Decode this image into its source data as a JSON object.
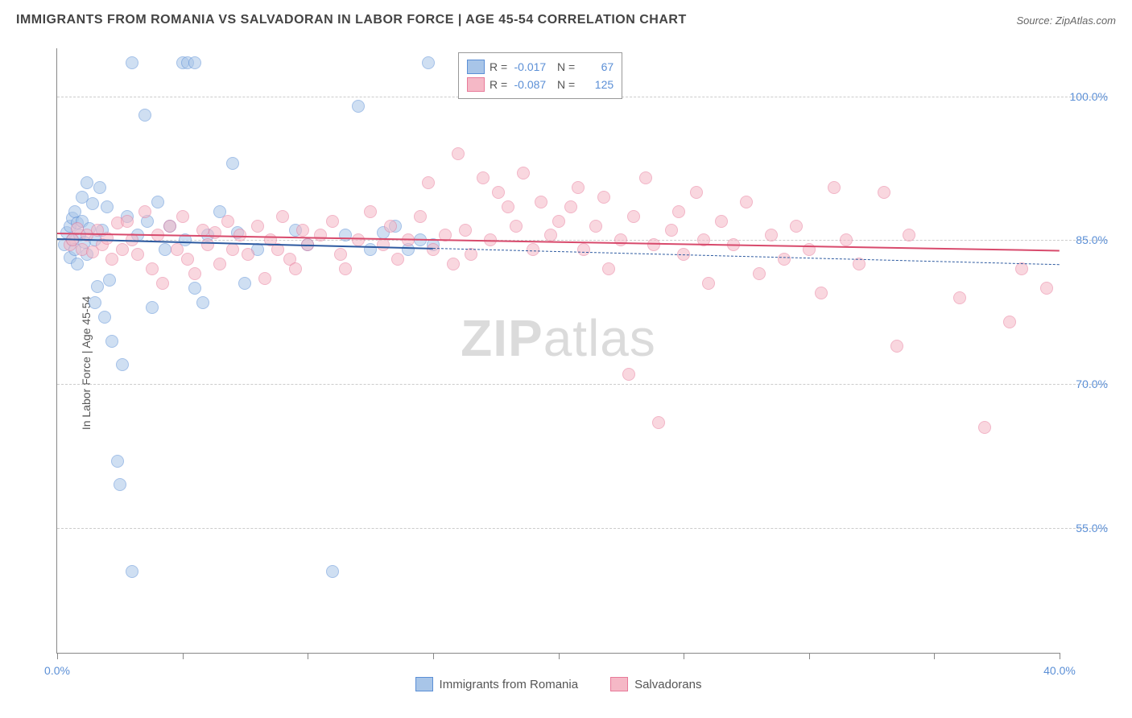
{
  "title": "IMMIGRANTS FROM ROMANIA VS SALVADORAN IN LABOR FORCE | AGE 45-54 CORRELATION CHART",
  "source": "Source: ZipAtlas.com",
  "y_axis_label": "In Labor Force | Age 45-54",
  "watermark_zip": "ZIP",
  "watermark_atlas": "atlas",
  "chart": {
    "type": "scatter",
    "xlim": [
      0,
      40
    ],
    "ylim": [
      42,
      105
    ],
    "y_ticks": [
      55.0,
      70.0,
      85.0,
      100.0
    ],
    "y_tick_labels": [
      "55.0%",
      "70.0%",
      "85.0%",
      "100.0%"
    ],
    "x_ticks": [
      0,
      5,
      10,
      15,
      20,
      25,
      30,
      35,
      40
    ],
    "x_tick_labels": {
      "0": "0.0%",
      "40": "40.0%"
    },
    "point_radius": 8,
    "point_opacity": 0.55,
    "grid_color": "#cccccc",
    "axis_color": "#888888",
    "background_color": "#ffffff",
    "label_color": "#5b8fd6",
    "series": [
      {
        "name": "Immigrants from Romania",
        "color_fill": "#a8c5e8",
        "color_stroke": "#5b8fd6",
        "R": "-0.017",
        "N": "67",
        "trend": {
          "x1": 0,
          "y1": 85.2,
          "x2": 15,
          "y2": 84.2,
          "x2_dash": 40,
          "y2_dash": 82.5,
          "color": "#2d5aa0",
          "width": 2
        },
        "points": [
          [
            0.3,
            84.5
          ],
          [
            0.4,
            85.8
          ],
          [
            0.5,
            83.2
          ],
          [
            0.5,
            86.5
          ],
          [
            0.6,
            85.0
          ],
          [
            0.6,
            87.3
          ],
          [
            0.7,
            84.0
          ],
          [
            0.7,
            88.0
          ],
          [
            0.8,
            86.8
          ],
          [
            0.8,
            82.5
          ],
          [
            0.9,
            85.5
          ],
          [
            1.0,
            87.0
          ],
          [
            1.0,
            89.5
          ],
          [
            1.1,
            84.8
          ],
          [
            1.2,
            91.0
          ],
          [
            1.2,
            83.5
          ],
          [
            1.3,
            86.2
          ],
          [
            1.4,
            88.8
          ],
          [
            1.5,
            85.0
          ],
          [
            1.5,
            78.5
          ],
          [
            1.6,
            80.2
          ],
          [
            1.7,
            90.5
          ],
          [
            1.8,
            86.0
          ],
          [
            1.9,
            77.0
          ],
          [
            2.0,
            88.5
          ],
          [
            2.1,
            80.8
          ],
          [
            2.2,
            74.5
          ],
          [
            2.4,
            62.0
          ],
          [
            2.5,
            59.5
          ],
          [
            2.6,
            72.0
          ],
          [
            2.8,
            87.5
          ],
          [
            3.0,
            50.5
          ],
          [
            3.0,
            103.5
          ],
          [
            3.2,
            85.5
          ],
          [
            3.5,
            98.0
          ],
          [
            3.6,
            87.0
          ],
          [
            3.8,
            78.0
          ],
          [
            4.0,
            89.0
          ],
          [
            4.3,
            84.0
          ],
          [
            4.5,
            86.5
          ],
          [
            5.0,
            103.5
          ],
          [
            5.1,
            85.0
          ],
          [
            5.2,
            103.5
          ],
          [
            5.5,
            80.0
          ],
          [
            5.5,
            103.5
          ],
          [
            5.8,
            78.5
          ],
          [
            6.0,
            85.5
          ],
          [
            6.5,
            88.0
          ],
          [
            7.0,
            93.0
          ],
          [
            7.2,
            85.8
          ],
          [
            7.5,
            80.5
          ],
          [
            8.0,
            84.0
          ],
          [
            9.5,
            86.0
          ],
          [
            10.0,
            84.5
          ],
          [
            11.0,
            50.5
          ],
          [
            11.5,
            85.5
          ],
          [
            12.0,
            99.0
          ],
          [
            12.5,
            84.0
          ],
          [
            13.0,
            85.8
          ],
          [
            13.5,
            86.5
          ],
          [
            14.0,
            84.0
          ],
          [
            14.5,
            85.0
          ],
          [
            14.8,
            103.5
          ],
          [
            15.0,
            84.5
          ]
        ]
      },
      {
        "name": "Salvadorans",
        "color_fill": "#f5b8c6",
        "color_stroke": "#e87a9a",
        "R": "-0.087",
        "N": "125",
        "trend": {
          "x1": 0,
          "y1": 85.8,
          "x2": 40,
          "y2": 84.0,
          "color": "#d84a6c",
          "width": 2
        },
        "points": [
          [
            0.5,
            84.5
          ],
          [
            0.6,
            85.0
          ],
          [
            0.8,
            86.2
          ],
          [
            1.0,
            84.0
          ],
          [
            1.2,
            85.5
          ],
          [
            1.4,
            83.8
          ],
          [
            1.6,
            86.0
          ],
          [
            1.8,
            84.5
          ],
          [
            2.0,
            85.2
          ],
          [
            2.2,
            83.0
          ],
          [
            2.4,
            86.8
          ],
          [
            2.6,
            84.0
          ],
          [
            2.8,
            87.0
          ],
          [
            3.0,
            85.0
          ],
          [
            3.2,
            83.5
          ],
          [
            3.5,
            88.0
          ],
          [
            3.8,
            82.0
          ],
          [
            4.0,
            85.5
          ],
          [
            4.2,
            80.5
          ],
          [
            4.5,
            86.5
          ],
          [
            4.8,
            84.0
          ],
          [
            5.0,
            87.5
          ],
          [
            5.2,
            83.0
          ],
          [
            5.5,
            81.5
          ],
          [
            5.8,
            86.0
          ],
          [
            6.0,
            84.5
          ],
          [
            6.3,
            85.8
          ],
          [
            6.5,
            82.5
          ],
          [
            6.8,
            87.0
          ],
          [
            7.0,
            84.0
          ],
          [
            7.3,
            85.5
          ],
          [
            7.6,
            83.5
          ],
          [
            8.0,
            86.5
          ],
          [
            8.3,
            81.0
          ],
          [
            8.5,
            85.0
          ],
          [
            8.8,
            84.0
          ],
          [
            9.0,
            87.5
          ],
          [
            9.3,
            83.0
          ],
          [
            9.5,
            82.0
          ],
          [
            9.8,
            86.0
          ],
          [
            10.0,
            84.5
          ],
          [
            10.5,
            85.5
          ],
          [
            11.0,
            87.0
          ],
          [
            11.3,
            83.5
          ],
          [
            11.5,
            82.0
          ],
          [
            12.0,
            85.0
          ],
          [
            12.5,
            88.0
          ],
          [
            13.0,
            84.5
          ],
          [
            13.3,
            86.5
          ],
          [
            13.6,
            83.0
          ],
          [
            14.0,
            85.0
          ],
          [
            14.5,
            87.5
          ],
          [
            14.8,
            91.0
          ],
          [
            15.0,
            84.0
          ],
          [
            15.5,
            85.5
          ],
          [
            15.8,
            82.5
          ],
          [
            16.0,
            94.0
          ],
          [
            16.3,
            86.0
          ],
          [
            16.5,
            83.5
          ],
          [
            17.0,
            91.5
          ],
          [
            17.3,
            85.0
          ],
          [
            17.6,
            90.0
          ],
          [
            18.0,
            88.5
          ],
          [
            18.3,
            86.5
          ],
          [
            18.6,
            92.0
          ],
          [
            19.0,
            84.0
          ],
          [
            19.3,
            89.0
          ],
          [
            19.7,
            85.5
          ],
          [
            20.0,
            87.0
          ],
          [
            20.5,
            88.5
          ],
          [
            20.8,
            90.5
          ],
          [
            21.0,
            84.0
          ],
          [
            21.5,
            86.5
          ],
          [
            21.8,
            89.5
          ],
          [
            22.0,
            82.0
          ],
          [
            22.5,
            85.0
          ],
          [
            22.8,
            71.0
          ],
          [
            23.0,
            87.5
          ],
          [
            23.5,
            91.5
          ],
          [
            23.8,
            84.5
          ],
          [
            24.0,
            66.0
          ],
          [
            24.5,
            86.0
          ],
          [
            24.8,
            88.0
          ],
          [
            25.0,
            83.5
          ],
          [
            25.5,
            90.0
          ],
          [
            25.8,
            85.0
          ],
          [
            26.0,
            80.5
          ],
          [
            26.5,
            87.0
          ],
          [
            27.0,
            84.5
          ],
          [
            27.5,
            89.0
          ],
          [
            28.0,
            81.5
          ],
          [
            28.5,
            85.5
          ],
          [
            29.0,
            83.0
          ],
          [
            29.5,
            86.5
          ],
          [
            30.0,
            84.0
          ],
          [
            30.5,
            79.5
          ],
          [
            31.0,
            90.5
          ],
          [
            31.5,
            85.0
          ],
          [
            32.0,
            82.5
          ],
          [
            33.0,
            90.0
          ],
          [
            33.5,
            74.0
          ],
          [
            34.0,
            85.5
          ],
          [
            36.0,
            79.0
          ],
          [
            37.0,
            65.5
          ],
          [
            38.0,
            76.5
          ],
          [
            38.5,
            82.0
          ],
          [
            39.5,
            80.0
          ]
        ]
      }
    ]
  },
  "bottom_legend": [
    {
      "label": "Immigrants from Romania",
      "fill": "#a8c5e8",
      "stroke": "#5b8fd6"
    },
    {
      "label": "Salvadorans",
      "fill": "#f5b8c6",
      "stroke": "#e87a9a"
    }
  ]
}
